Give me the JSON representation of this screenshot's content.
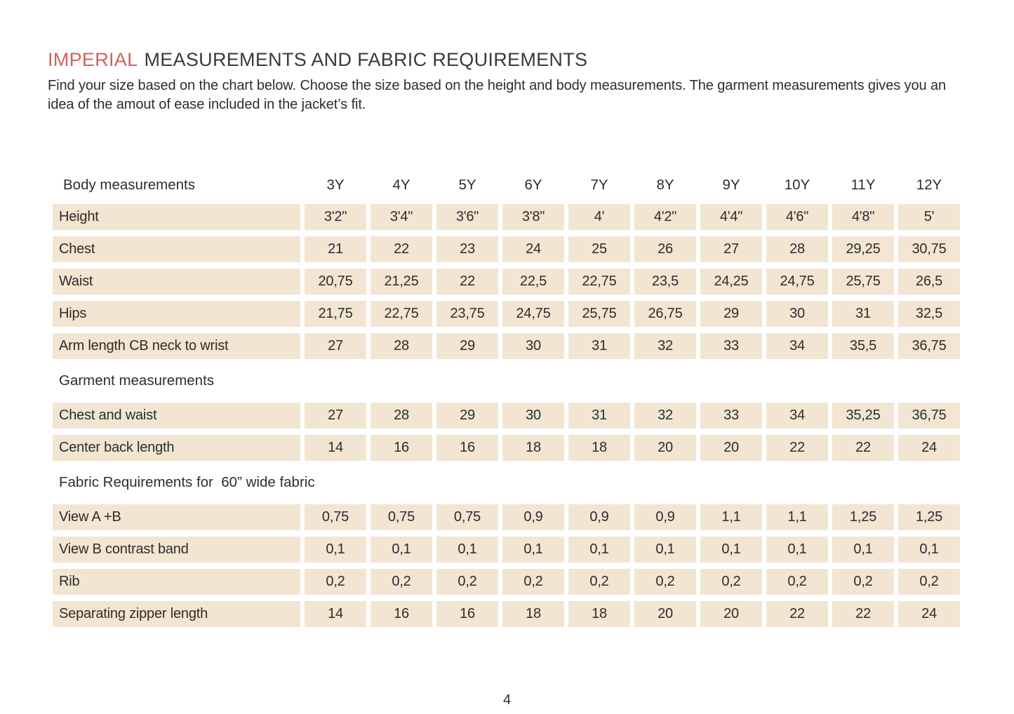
{
  "colors": {
    "accent": "#d5605a",
    "cell_bg": "#f2e5d2",
    "text": "#2d2d2d"
  },
  "header": {
    "title_accent": "IMPERIAL",
    "title_rest": "MEASUREMENTS AND FABRIC REQUIREMENTS",
    "intro": "Find your size based on the chart below. Choose the size based on the height and body measurements. The garment measurements gives you an idea of the amout of ease included in the jacket’s fit."
  },
  "table": {
    "size_labels": [
      "3Y",
      "4Y",
      "5Y",
      "6Y",
      "7Y",
      "8Y",
      "9Y",
      "10Y",
      "11Y",
      "12Y"
    ],
    "sections": [
      {
        "header": "Body measurements",
        "rows": [
          {
            "label": "Height",
            "values": [
              "3'2\"",
              "3'4\"",
              "3'6\"",
              "3'8\"",
              "4'",
              "4'2\"",
              "4'4\"",
              "4'6\"",
              "4'8\"",
              "5'"
            ]
          },
          {
            "label": "Chest",
            "values": [
              "21",
              "22",
              "23",
              "24",
              "25",
              "26",
              "27",
              "28",
              "29,25",
              "30,75"
            ]
          },
          {
            "label": "Waist",
            "values": [
              "20,75",
              "21,25",
              "22",
              "22,5",
              "22,75",
              "23,5",
              "24,25",
              "24,75",
              "25,75",
              "26,5"
            ]
          },
          {
            "label": "Hips",
            "values": [
              "21,75",
              "22,75",
              "23,75",
              "24,75",
              "25,75",
              "26,75",
              "29",
              "30",
              "31",
              "32,5"
            ]
          },
          {
            "label": "Arm length CB neck to wrist",
            "values": [
              "27",
              "28",
              "29",
              "30",
              "31",
              "32",
              "33",
              "34",
              "35,5",
              "36,75"
            ]
          }
        ]
      },
      {
        "header": "Garment measurements",
        "rows": [
          {
            "label": "Chest and waist",
            "values": [
              "27",
              "28",
              "29",
              "30",
              "31",
              "32",
              "33",
              "34",
              "35,25",
              "36,75"
            ]
          },
          {
            "label": "Center back length",
            "values": [
              "14",
              "16",
              "16",
              "18",
              "18",
              "20",
              "20",
              "22",
              "22",
              "24"
            ]
          }
        ]
      },
      {
        "header": "Fabric Requirements for  60” wide fabric",
        "rows": [
          {
            "label": "View A +B",
            "values": [
              "0,75",
              "0,75",
              "0,75",
              "0,9",
              "0,9",
              "0,9",
              "1,1",
              "1,1",
              "1,25",
              "1,25"
            ]
          },
          {
            "label": "View B contrast band",
            "values": [
              "0,1",
              "0,1",
              "0,1",
              "0,1",
              "0,1",
              "0,1",
              "0,1",
              "0,1",
              "0,1",
              "0,1"
            ]
          },
          {
            "label": "Rib",
            "values": [
              "0,2",
              "0,2",
              "0,2",
              "0,2",
              "0,2",
              "0,2",
              "0,2",
              "0,2",
              "0,2",
              "0,2"
            ]
          },
          {
            "label": "Separating zipper length",
            "values": [
              "14",
              "16",
              "16",
              "18",
              "18",
              "20",
              "20",
              "22",
              "22",
              "24"
            ]
          }
        ]
      }
    ]
  },
  "footer": {
    "page_number": "4"
  }
}
